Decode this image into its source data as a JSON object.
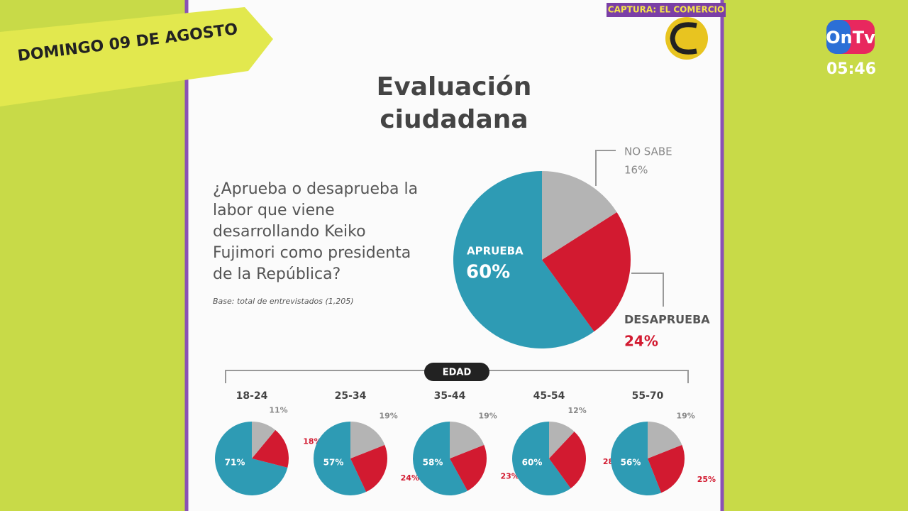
{
  "banner": "DOMINGO 09 DE AGOSTO",
  "credit": "CAPTURA: EL COMERCIO",
  "channel": {
    "logo": "OnTv",
    "time": "05:46"
  },
  "age_header": "EDAD",
  "chart_data": [
    {
      "type": "pie",
      "title": "Evaluación ciudadana",
      "subtitle": "¿Aprueba o desaprueba la labor que viene desarrollando Keiko Fujimori como presidenta de la República?",
      "note": "Base: total de entrevistados (1,205)",
      "categories": [
        "APRUEBA",
        "DESAPRUEBA",
        "NO SABE"
      ],
      "values": [
        60,
        24,
        16
      ],
      "value_labels": [
        "60%",
        "24%",
        "16%"
      ],
      "colors": [
        "#2e9bb4",
        "#d21a30",
        "#b4b4b4"
      ]
    },
    {
      "type": "pie",
      "title": "18-24",
      "values": [
        71,
        18,
        11
      ],
      "value_labels": [
        "71%",
        "18%",
        "11%"
      ],
      "colors": [
        "#2e9bb4",
        "#d21a30",
        "#b4b4b4"
      ]
    },
    {
      "type": "pie",
      "title": "25-34",
      "values": [
        57,
        24,
        19
      ],
      "value_labels": [
        "57%",
        "24%",
        "19%"
      ],
      "colors": [
        "#2e9bb4",
        "#d21a30",
        "#b4b4b4"
      ]
    },
    {
      "type": "pie",
      "title": "35-44",
      "values": [
        58,
        23,
        19
      ],
      "value_labels": [
        "58%",
        "23%",
        "19%"
      ],
      "colors": [
        "#2e9bb4",
        "#d21a30",
        "#b4b4b4"
      ]
    },
    {
      "type": "pie",
      "title": "45-54",
      "values": [
        60,
        28,
        12
      ],
      "value_labels": [
        "60%",
        "28%",
        "12%"
      ],
      "colors": [
        "#2e9bb4",
        "#d21a30",
        "#b4b4b4"
      ]
    },
    {
      "type": "pie",
      "title": "55-70",
      "values": [
        56,
        25,
        19
      ],
      "value_labels": [
        "56%",
        "25%",
        "19%"
      ],
      "colors": [
        "#2e9bb4",
        "#d21a30",
        "#b4b4b4"
      ]
    }
  ]
}
